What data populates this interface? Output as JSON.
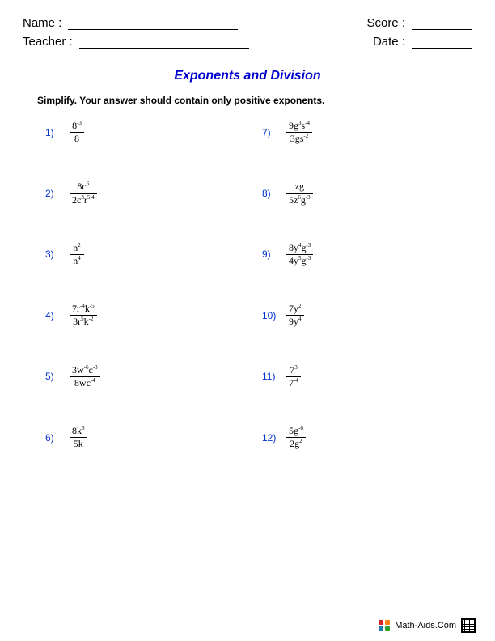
{
  "colors": {
    "title_color": "#0000cc",
    "problem_number_color": "#0033cc",
    "text_color": "#000000",
    "background": "#ffffff"
  },
  "header": {
    "name_label": "Name :",
    "teacher_label": "Teacher :",
    "score_label": "Score :",
    "date_label": "Date :"
  },
  "title": "Exponents and Division",
  "instructions": "Simplify.  Your answer should contain only positive exponents.",
  "problems": [
    {
      "n": "1)",
      "num": "8<sup>-3</sup>",
      "den": "8"
    },
    {
      "n": "7)",
      "num": "9g<sup>3</sup>s<sup>-4</sup>",
      "den": "3gs<sup>-2</sup>"
    },
    {
      "n": "2)",
      "num": "8c<sup>6</sup>",
      "den": "2c<sup>3</sup>r<sup>5,4</sup>"
    },
    {
      "n": "8)",
      "num": "zg",
      "den": "5z<sup>6</sup>g<sup>-3</sup>"
    },
    {
      "n": "3)",
      "num": "n<sup>2</sup>",
      "den": "n<sup>4</sup>"
    },
    {
      "n": "9)",
      "num": "8y<sup>4</sup>g<sup>-3</sup>",
      "den": "4y<sup>5</sup>g<sup>-3</sup>"
    },
    {
      "n": "4)",
      "num": "7r<sup>-4</sup>k<sup>-5</sup>",
      "den": "3r<sup>5</sup>k<sup>-2</sup>"
    },
    {
      "n": "10)",
      "num": "7y<sup>2</sup>",
      "den": "9y<sup>4</sup>"
    },
    {
      "n": "5)",
      "num": "3w<sup>-6</sup>c<sup>-3</sup>",
      "den": "8wc<sup>-4</sup>"
    },
    {
      "n": "11)",
      "num": "7<sup>3</sup>",
      "den": "7<sup>-4</sup>"
    },
    {
      "n": "6)",
      "num": "8k<sup>6</sup>",
      "den": "5k"
    },
    {
      "n": "12)",
      "num": "5g<sup>-6</sup>",
      "den": "2g<sup>2</sup>"
    }
  ],
  "footer": {
    "site": "Math-Aids.Com",
    "logo_colors": [
      "#d62728",
      "#ff7f0e",
      "#1f77b4",
      "#2ca02c"
    ]
  }
}
